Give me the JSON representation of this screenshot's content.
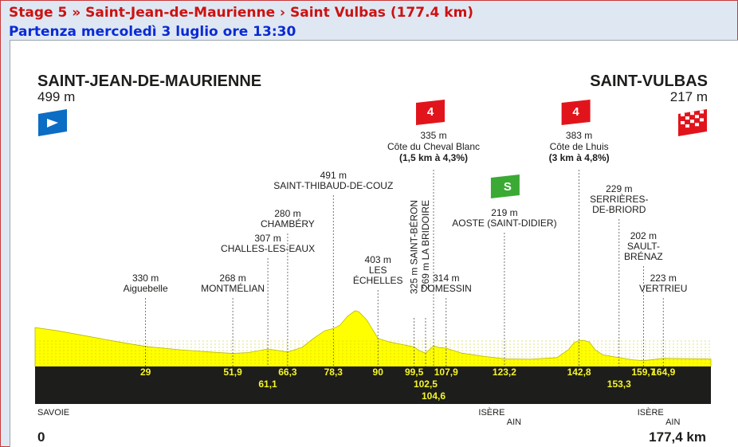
{
  "header": {
    "title": "Stage 5 » Saint-Jean-de-Maurienne › Saint Vulbas (177.4 km)",
    "subtitle": "Partenza mercoledì 3 luglio ore 13:30"
  },
  "colors": {
    "title": "#cc1212",
    "subtitle": "#0a2ad6",
    "profile_fill": "#ffff00",
    "distance_band": "#1d1d1b",
    "distance_text": "#f5f52a",
    "climb_badge": "#e1141c",
    "sprint_badge": "#3aaa35",
    "start_flag": "#0b6dc4",
    "finish_flag": "#e1141c"
  },
  "chart_data": {
    "type": "area",
    "start": {
      "name": "SAINT-JEAN-DE-MAURIENNE",
      "elevation": "499 m",
      "icon": "start-flag-icon"
    },
    "finish": {
      "name": "SAINT-VULBAS",
      "elevation": "217 m",
      "icon": "finish-flag-icon"
    },
    "axis_start": "0",
    "axis_end": "177,4 km",
    "waypoints": [
      {
        "km": 29,
        "km_label": "29",
        "elev": 330,
        "label": [
          "330 m",
          "Aiguebelle"
        ]
      },
      {
        "km": 51.9,
        "km_label": "51,9",
        "elev": 268,
        "label": [
          "268 m",
          "MONTMÉLIAN"
        ]
      },
      {
        "km": 61.1,
        "km_label": "61,1",
        "elev": 307,
        "label": [
          "307 m",
          "CHALLES-LES-EAUX"
        ]
      },
      {
        "km": 66.3,
        "km_label": "66,3",
        "elev": 280,
        "label": [
          "280 m",
          "CHAMBÉRY"
        ]
      },
      {
        "km": 78.3,
        "km_label": "78,3",
        "elev": 491,
        "label": [
          "491 m",
          "SAINT-THIBAUD-DE-COUZ"
        ]
      },
      {
        "km": 90,
        "km_label": "90",
        "elev": 403,
        "label": [
          "403 m",
          "LES",
          "ÉCHELLES"
        ]
      },
      {
        "km": 99.5,
        "km_label": "99,5",
        "elev": 325,
        "vertical": "325 m  SAINT-BÉRON"
      },
      {
        "km": 102.5,
        "km_label": "102,5",
        "elev": 269,
        "vertical": "269 m  LA BRIDOIRE"
      },
      {
        "km": 104.6,
        "km_label": "104,6",
        "elev": 335,
        "climb": {
          "category": "4",
          "label": [
            "335 m",
            "Côte du Cheval Blanc",
            "(1,5 km à 4,3%)"
          ]
        }
      },
      {
        "km": 107.9,
        "km_label": "107,9",
        "elev": 314,
        "label": [
          "314 m",
          "DOMESSIN"
        ]
      },
      {
        "km": 123.2,
        "km_label": "123,2",
        "elev": 219,
        "sprint": "S",
        "label": [
          "219 m",
          "AOSTE (SAINT-DIDIER)"
        ]
      },
      {
        "km": 142.8,
        "km_label": "142,8",
        "elev": 383,
        "climb": {
          "category": "4",
          "label": [
            "383 m",
            "Côte de Lhuis",
            "(3 km à 4,8%)"
          ]
        }
      },
      {
        "km": 153.3,
        "km_label": "153,3",
        "elev": 229,
        "label": [
          "229 m",
          "SERRIÈRES-",
          "DE-BRIORD"
        ]
      },
      {
        "km": 159.7,
        "km_label": "159,7",
        "elev": 202,
        "label": [
          "202 m",
          "SAULT-",
          "BRÉNAZ"
        ]
      },
      {
        "km": 164.9,
        "km_label": "164,9",
        "elev": 223,
        "label": [
          "223 m",
          "VERTRIEU"
        ]
      }
    ],
    "regions": [
      {
        "km": 0,
        "text": [
          "SAVOIE"
        ]
      },
      {
        "km": 123.2,
        "text": [
          "ISÈRE",
          "AIN"
        ]
      },
      {
        "km": 164.9,
        "text": [
          "ISÈRE",
          "AIN"
        ]
      }
    ],
    "profile": [
      [
        0,
        499
      ],
      [
        6,
        470
      ],
      [
        14,
        420
      ],
      [
        22,
        370
      ],
      [
        29,
        330
      ],
      [
        38,
        300
      ],
      [
        46,
        280
      ],
      [
        51.9,
        268
      ],
      [
        56,
        275
      ],
      [
        61.1,
        307
      ],
      [
        66.3,
        280
      ],
      [
        70,
        320
      ],
      [
        73,
        400
      ],
      [
        76,
        470
      ],
      [
        78.3,
        491
      ],
      [
        80,
        520
      ],
      [
        82,
        600
      ],
      [
        84,
        650
      ],
      [
        85,
        640
      ],
      [
        87,
        570
      ],
      [
        89,
        460
      ],
      [
        90,
        403
      ],
      [
        93,
        370
      ],
      [
        96,
        350
      ],
      [
        99.5,
        325
      ],
      [
        101,
        290
      ],
      [
        102.5,
        269
      ],
      [
        104.6,
        335
      ],
      [
        106,
        320
      ],
      [
        107.9,
        314
      ],
      [
        112,
        270
      ],
      [
        118,
        240
      ],
      [
        123.2,
        219
      ],
      [
        130,
        215
      ],
      [
        137,
        230
      ],
      [
        140,
        300
      ],
      [
        141.5,
        365
      ],
      [
        142.8,
        383
      ],
      [
        144,
        385
      ],
      [
        145.5,
        370
      ],
      [
        147,
        300
      ],
      [
        149,
        255
      ],
      [
        153.3,
        229
      ],
      [
        157,
        210
      ],
      [
        159.7,
        202
      ],
      [
        162,
        212
      ],
      [
        164.9,
        223
      ],
      [
        170,
        220
      ],
      [
        177.4,
        217
      ]
    ]
  }
}
